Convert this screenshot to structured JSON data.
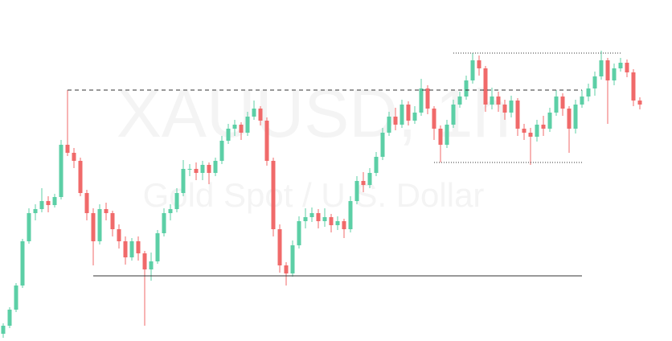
{
  "chart_data": {
    "type": "candlestick",
    "title": "XAUUSD, 1h",
    "subtitle": "Gold Spot / U.S. Dollar",
    "up_color": "#5ccfa6",
    "down_color": "#f06a6a",
    "ylim": [
      0,
      424
    ],
    "open": [
      9,
      19,
      39,
      69,
      124,
      159,
      164,
      174,
      169,
      179,
      244,
      234,
      224,
      184,
      159,
      124,
      164,
      159,
      139,
      124,
      104,
      124,
      109,
      89,
      99,
      134,
      159,
      164,
      184,
      214,
      214,
      209,
      219,
      209,
      224,
      249,
      264,
      269,
      259,
      279,
      289,
      274,
      224,
      139,
      94,
      84,
      119,
      149,
      154,
      159,
      149,
      154,
      144,
      149,
      139,
      174,
      199,
      194,
      209,
      229,
      259,
      279,
      269,
      294,
      274,
      284,
      314,
      289,
      264,
      244,
      269,
      294,
      304,
      324,
      349,
      339,
      294,
      304,
      294,
      284,
      299,
      264,
      259,
      254,
      269,
      264,
      284,
      304,
      289,
      264,
      294,
      304,
      314,
      329,
      349,
      324,
      339,
      346,
      334,
      299
    ],
    "high": [
      22,
      42,
      72,
      127,
      165,
      170,
      190,
      180,
      183,
      250,
      312,
      240,
      228,
      188,
      165,
      170,
      172,
      162,
      145,
      130,
      128,
      130,
      112,
      110,
      138,
      165,
      170,
      190,
      225,
      220,
      222,
      224,
      222,
      228,
      255,
      270,
      275,
      272,
      285,
      299,
      292,
      278,
      228,
      145,
      98,
      125,
      155,
      165,
      166,
      164,
      165,
      158,
      155,
      152,
      180,
      205,
      210,
      215,
      235,
      265,
      285,
      290,
      300,
      298,
      292,
      326,
      318,
      292,
      268,
      275,
      300,
      310,
      330,
      358,
      355,
      342,
      315,
      310,
      300,
      305,
      302,
      270,
      265,
      275,
      280,
      290,
      312,
      308,
      292,
      300,
      312,
      320,
      335,
      361,
      352,
      345,
      352,
      350,
      338,
      303
    ],
    "low": [
      4,
      16,
      36,
      66,
      121,
      150,
      160,
      160,
      166,
      176,
      230,
      215,
      180,
      150,
      94,
      120,
      150,
      130,
      115,
      95,
      100,
      100,
      19,
      75,
      96,
      130,
      150,
      160,
      180,
      205,
      200,
      200,
      195,
      205,
      220,
      245,
      255,
      250,
      255,
      275,
      268,
      218,
      130,
      85,
      69,
      80,
      115,
      140,
      148,
      140,
      142,
      135,
      138,
      128,
      135,
      170,
      185,
      190,
      205,
      225,
      255,
      262,
      265,
      268,
      270,
      280,
      282,
      250,
      222,
      240,
      265,
      290,
      300,
      320,
      330,
      285,
      288,
      285,
      275,
      278,
      255,
      250,
      219,
      248,
      255,
      260,
      280,
      280,
      234,
      258,
      290,
      298,
      305,
      325,
      270,
      318,
      335,
      328,
      292,
      288
    ],
    "close": [
      19,
      39,
      69,
      124,
      159,
      164,
      174,
      169,
      179,
      244,
      234,
      224,
      184,
      159,
      124,
      164,
      159,
      139,
      124,
      104,
      124,
      109,
      89,
      99,
      134,
      159,
      164,
      184,
      214,
      214,
      209,
      219,
      209,
      224,
      249,
      264,
      269,
      259,
      279,
      289,
      274,
      224,
      139,
      94,
      84,
      119,
      149,
      154,
      159,
      149,
      154,
      144,
      149,
      139,
      174,
      199,
      194,
      209,
      229,
      259,
      279,
      269,
      294,
      274,
      284,
      314,
      289,
      264,
      244,
      269,
      294,
      304,
      324,
      349,
      339,
      294,
      304,
      294,
      284,
      299,
      264,
      259,
      254,
      269,
      264,
      284,
      304,
      289,
      264,
      294,
      304,
      314,
      329,
      349,
      324,
      339,
      346,
      334,
      299,
      294
    ],
    "levels": [
      {
        "value": 312,
        "style": "dashed",
        "from": 10,
        "to": 90
      },
      {
        "value": 81,
        "style": "solid",
        "from": 14,
        "to": 90
      },
      {
        "value": 358,
        "style": "dotted",
        "from": 70,
        "to": 96
      },
      {
        "value": 222,
        "style": "dotted",
        "from": 67,
        "to": 90
      }
    ]
  }
}
